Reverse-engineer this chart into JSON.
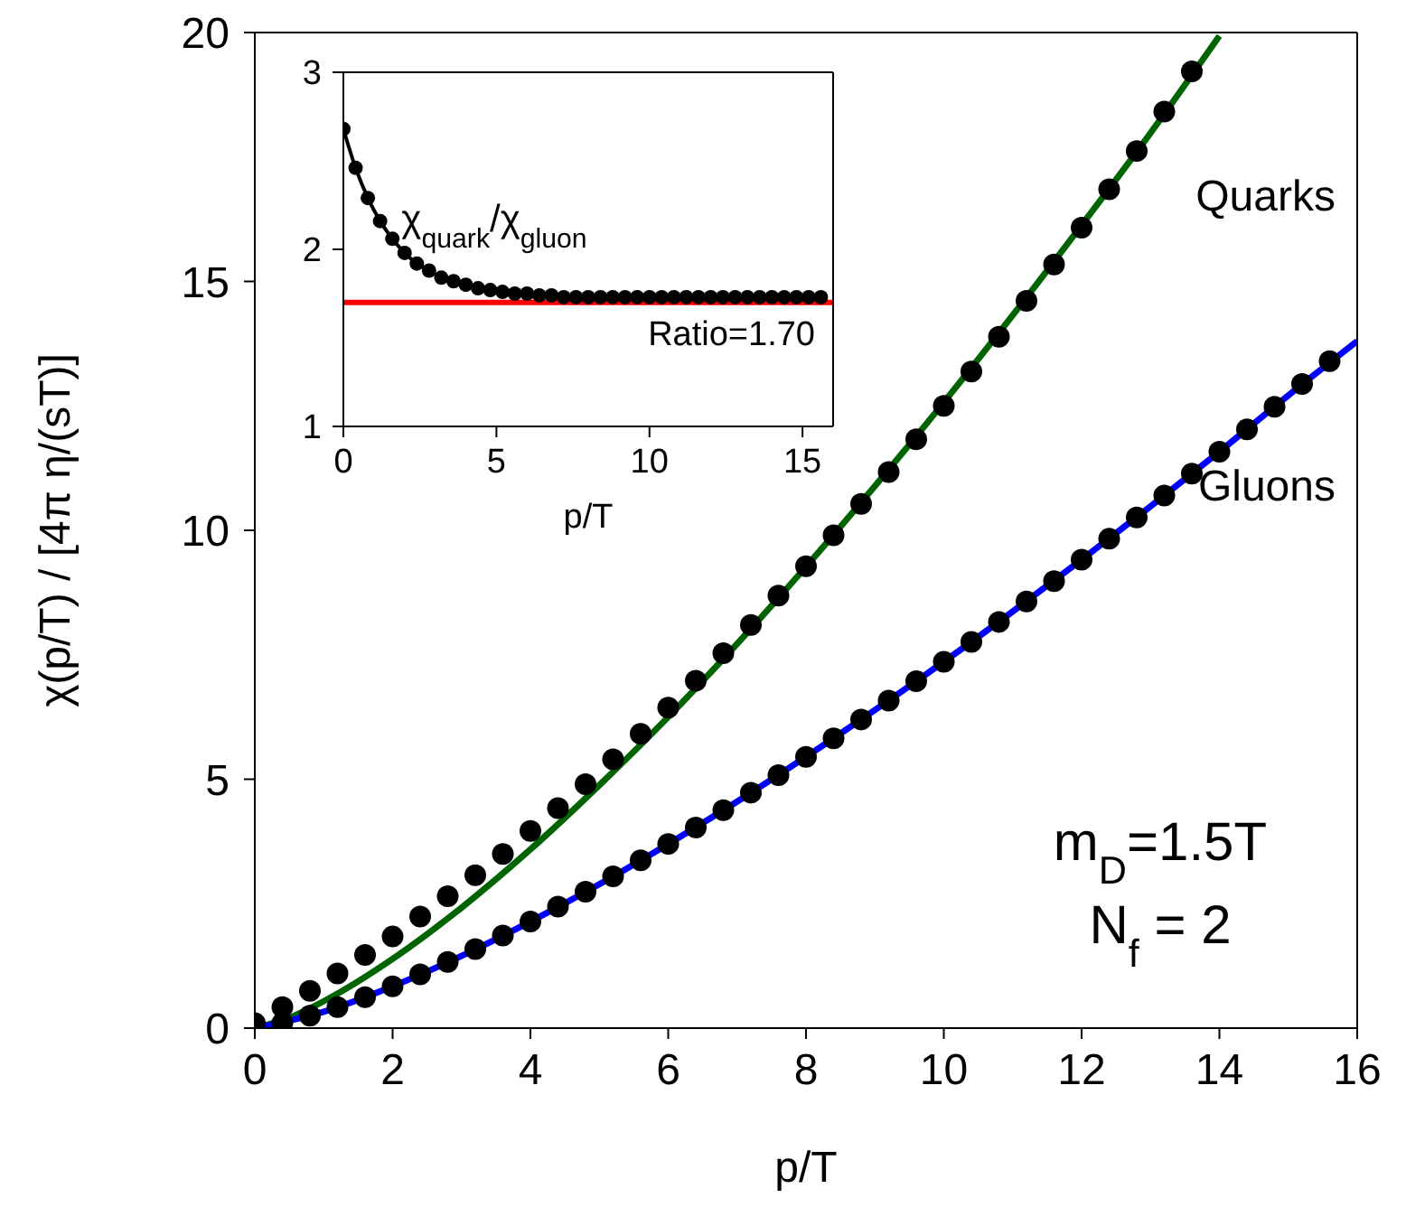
{
  "chart_data": [
    {
      "type": "scatter",
      "xlabel": "p/T",
      "ylabel": "χ(p/T) / [4π η/(sT)]",
      "xlim": [
        0,
        16
      ],
      "xticks": [
        0,
        2,
        4,
        6,
        8,
        10,
        12,
        14,
        16
      ],
      "ylim": [
        0,
        20
      ],
      "yticks": [
        0,
        5,
        10,
        15,
        20
      ],
      "series": [
        {
          "name": "Quarks",
          "marker": "circle",
          "color": "#000000",
          "x": [
            0,
            0.4,
            0.8,
            1.2,
            1.6,
            2.0,
            2.4,
            2.8,
            3.2,
            3.6,
            4.0,
            4.4,
            4.8,
            5.2,
            5.6,
            6.0,
            6.4,
            6.8,
            7.2,
            7.6,
            8.0,
            8.4,
            8.8,
            9.2,
            9.6,
            10.0,
            10.4,
            10.8,
            11.2,
            11.6,
            12.0,
            12.4,
            12.8,
            13.2,
            13.6
          ],
          "values": [
            0.1,
            0.42,
            0.75,
            1.1,
            1.47,
            1.84,
            2.24,
            2.65,
            3.07,
            3.5,
            3.96,
            4.42,
            4.9,
            5.4,
            5.91,
            6.44,
            6.98,
            7.53,
            8.1,
            8.69,
            9.28,
            9.9,
            10.53,
            11.17,
            11.83,
            12.5,
            13.19,
            13.89,
            14.61,
            15.34,
            16.08,
            16.85,
            17.62,
            18.41,
            19.22
          ]
        },
        {
          "type": "line",
          "color": "#006400",
          "x": [
            0,
            0.5,
            1,
            2,
            3,
            4,
            5,
            6,
            7,
            8,
            9,
            10,
            11,
            12,
            13,
            14
          ],
          "values": [
            0,
            0.21,
            0.54,
            1.39,
            2.42,
            3.59,
            4.88,
            6.25,
            7.72,
            9.27,
            10.89,
            12.57,
            14.32,
            16.13,
            17.98,
            19.93
          ]
        },
        {
          "name": "Gluons",
          "marker": "circle",
          "color": "#000000",
          "x": [
            0.4,
            0.8,
            1.2,
            1.6,
            2.0,
            2.4,
            2.8,
            3.2,
            3.6,
            4.0,
            4.4,
            4.8,
            5.2,
            5.6,
            6.0,
            6.4,
            6.8,
            7.2,
            7.6,
            8.0,
            8.4,
            8.8,
            9.2,
            9.6,
            10.0,
            10.4,
            10.8,
            11.2,
            11.6,
            12.0,
            12.4,
            12.8,
            13.2,
            13.6,
            14.0,
            14.4,
            14.8,
            15.2,
            15.6
          ],
          "values": [
            0.1,
            0.25,
            0.42,
            0.62,
            0.84,
            1.08,
            1.33,
            1.59,
            1.86,
            2.14,
            2.44,
            2.74,
            3.05,
            3.37,
            3.7,
            4.03,
            4.38,
            4.73,
            5.08,
            5.45,
            5.82,
            6.2,
            6.58,
            6.97,
            7.36,
            7.76,
            8.16,
            8.57,
            8.98,
            9.41,
            9.83,
            10.26,
            10.7,
            11.14,
            11.58,
            12.03,
            12.48,
            12.94,
            13.4
          ]
        },
        {
          "type": "line",
          "color": "#0000ff",
          "x": [
            0,
            1,
            2,
            3,
            4,
            5,
            6,
            7,
            8,
            9,
            10,
            11,
            12,
            13,
            14,
            15,
            16
          ],
          "values": [
            0,
            0.33,
            0.84,
            1.45,
            2.14,
            2.89,
            3.7,
            4.55,
            5.45,
            6.39,
            7.36,
            8.37,
            9.41,
            10.48,
            11.58,
            12.71,
            13.8
          ]
        }
      ],
      "annotations": [
        "m$_{D}$=1.5T",
        "N$_{f}$ = 2"
      ]
    },
    {
      "type": "line",
      "xlabel": "p/T",
      "xlim": [
        0,
        16
      ],
      "xticks": [
        0,
        5,
        10,
        15
      ],
      "ylim": [
        1,
        3
      ],
      "yticks": [
        1,
        2,
        3
      ],
      "marker": "circle",
      "series": [
        {
          "color": "#000000",
          "x": [
            0,
            0.4,
            0.8,
            1.2,
            1.6,
            2.0,
            2.4,
            2.8,
            3.2,
            3.6,
            4.0,
            4.4,
            4.8,
            5.2,
            5.6,
            6.0,
            6.4,
            6.8,
            7.2,
            7.6,
            8.0,
            8.4,
            8.8,
            9.2,
            9.6,
            10.0,
            10.4,
            10.8,
            11.2,
            11.6,
            12.0,
            12.4,
            12.8,
            13.2,
            13.6,
            14.0,
            14.4,
            14.8,
            15.2,
            15.6
          ],
          "values": [
            2.68,
            2.46,
            2.29,
            2.16,
            2.06,
            1.98,
            1.92,
            1.88,
            1.84,
            1.82,
            1.8,
            1.78,
            1.77,
            1.76,
            1.75,
            1.75,
            1.74,
            1.74,
            1.73,
            1.73,
            1.73,
            1.73,
            1.73,
            1.73,
            1.73,
            1.73,
            1.73,
            1.73,
            1.73,
            1.73,
            1.73,
            1.73,
            1.73,
            1.73,
            1.73,
            1.73,
            1.73,
            1.73,
            1.73,
            1.73
          ]
        }
      ],
      "ref_lines": [
        {
          "axis": "y",
          "value": 1.7,
          "label": "Ratio=1.70",
          "color": "#ff0000"
        }
      ],
      "annotations": [
        {
          "text": "χ$_{quark}$/χ$_{gluon}$",
          "x": 1.9,
          "y": 2.1
        }
      ]
    }
  ]
}
